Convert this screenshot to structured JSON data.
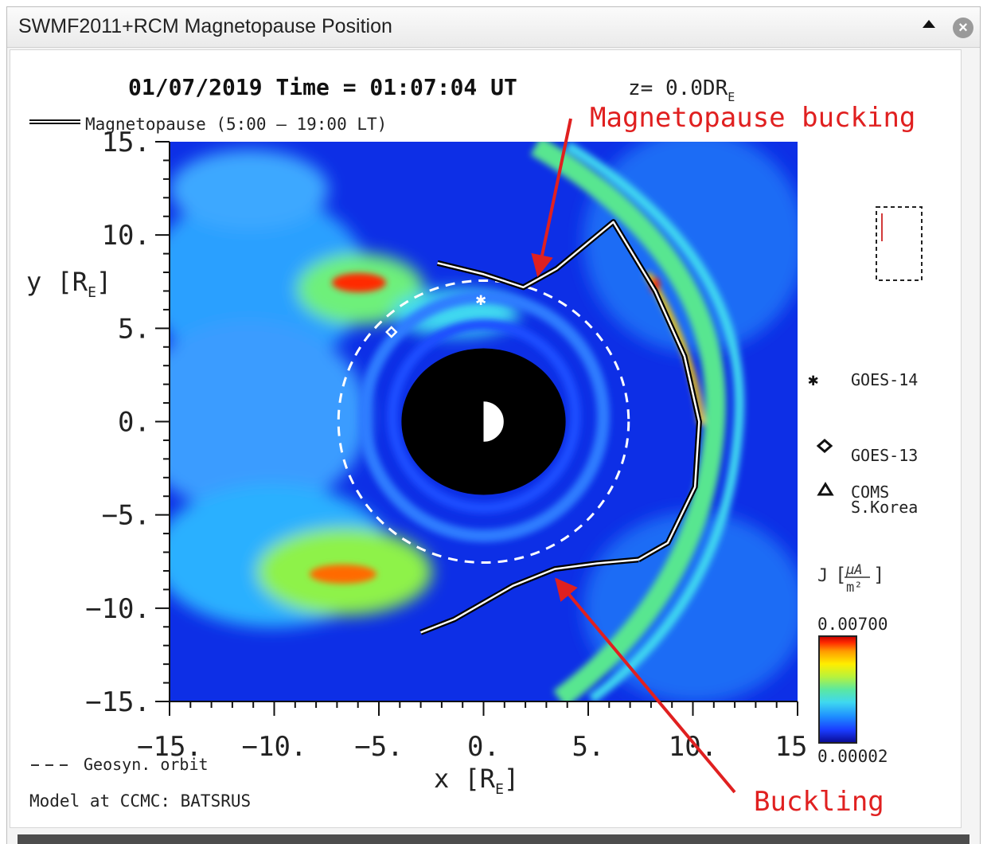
{
  "window": {
    "title": "SWMF2011+RCM Magnetopause Position",
    "collapse_icon": "triangle-up-icon",
    "close_icon": "close-icon"
  },
  "chart_data": {
    "type": "heatmap",
    "title": "01/07/2019 Time = 01:07:04 UT",
    "title_suffix": "z= 0.0DR",
    "title_suffix_sub": "E",
    "xlabel": "x [R",
    "xlabel_sub": "E",
    "xlabel_close": "]",
    "ylabel": "y [R",
    "ylabel_sub": "E",
    "ylabel_close": "]",
    "xlim": [
      -15,
      15
    ],
    "ylim": [
      -15,
      15
    ],
    "x_ticks": [
      -15,
      -10,
      -5,
      0,
      5,
      10,
      15
    ],
    "x_tick_labels": [
      "−15.",
      "−10.",
      "−5.",
      "0.",
      "5.",
      "10.",
      "15"
    ],
    "y_ticks": [
      15,
      10,
      5,
      0,
      -5,
      -10,
      -15
    ],
    "y_tick_labels": [
      "15.",
      "10.",
      "5.",
      "0.",
      "−5.",
      "−10.",
      "−15."
    ],
    "legend_magnetopause": "Magnetopause (5:00 – 19:00 LT)",
    "legend_geosyn": "Geosyn. orbit",
    "model_label": "Model at CCMC: BATSRUS",
    "colorbar": {
      "label_prefix": "J",
      "unit_num": "µA",
      "unit_den": "m²",
      "max_label": "0.00700",
      "min_label": "0.00002",
      "colors": [
        "#0a0a90",
        "#1a3cff",
        "#1e90ff",
        "#3fd8f0",
        "#5be8a0",
        "#b8f23c",
        "#ffee00",
        "#ff9a00",
        "#ff2a00",
        "#c40000"
      ]
    },
    "satellites": [
      {
        "name": "GOES-14",
        "symbol": "asterisk",
        "x": 0.0,
        "y": 6.6
      },
      {
        "name": "GOES-13",
        "symbol": "diamond",
        "x": -4.4,
        "y": 4.8
      },
      {
        "name": "COMS",
        "name_line2": "S.Korea",
        "symbol": "triangle"
      }
    ],
    "geosynchronous_radius": 6.6,
    "earth_shadow_radius": 3.5,
    "earth_radius": 1.0,
    "magnetopause_upper": [
      [
        -2.2,
        8.5
      ],
      [
        0.0,
        7.9
      ],
      [
        1.9,
        7.2
      ],
      [
        3.5,
        8.2
      ],
      [
        6.2,
        10.7
      ],
      [
        8.2,
        7.0
      ],
      [
        9.6,
        3.5
      ],
      [
        10.3,
        0.0
      ],
      [
        10.1,
        -3.5
      ],
      [
        8.8,
        -6.5
      ],
      [
        7.4,
        -7.4
      ]
    ],
    "magnetopause_lower": [
      [
        7.4,
        -7.4
      ],
      [
        5.4,
        -7.6
      ],
      [
        3.4,
        -7.9
      ],
      [
        1.4,
        -8.8
      ],
      [
        -1.4,
        -10.6
      ],
      [
        -3.0,
        -11.3
      ]
    ],
    "annotations": [
      {
        "text": "Magnetopause bucking",
        "color": "#e02020",
        "target": [
          2.6,
          8.2
        ]
      },
      {
        "text": "Buckling",
        "color": "#e02020",
        "target": [
          3.4,
          -8.2
        ]
      }
    ]
  }
}
